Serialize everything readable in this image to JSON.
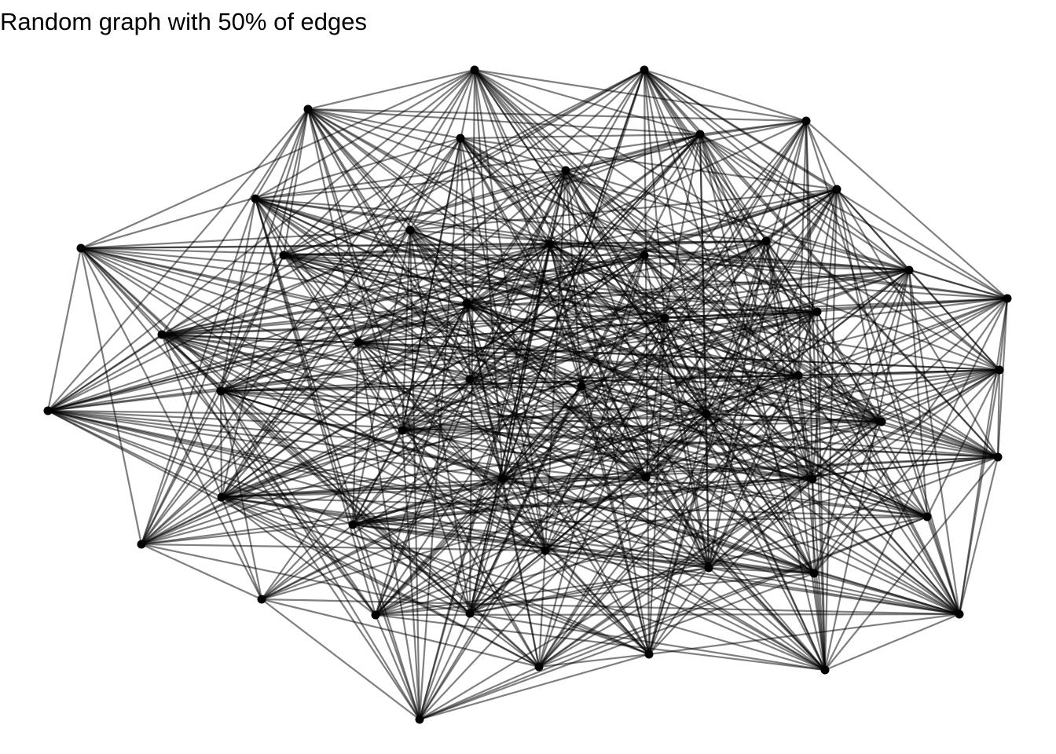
{
  "title": "Random graph with 50% of edges",
  "graph": {
    "node_count": 50,
    "edge_probability": 0.5,
    "seed": 20240611,
    "colors": {
      "edge": "#000000",
      "node": "#000000",
      "background": "#ffffff"
    }
  }
}
